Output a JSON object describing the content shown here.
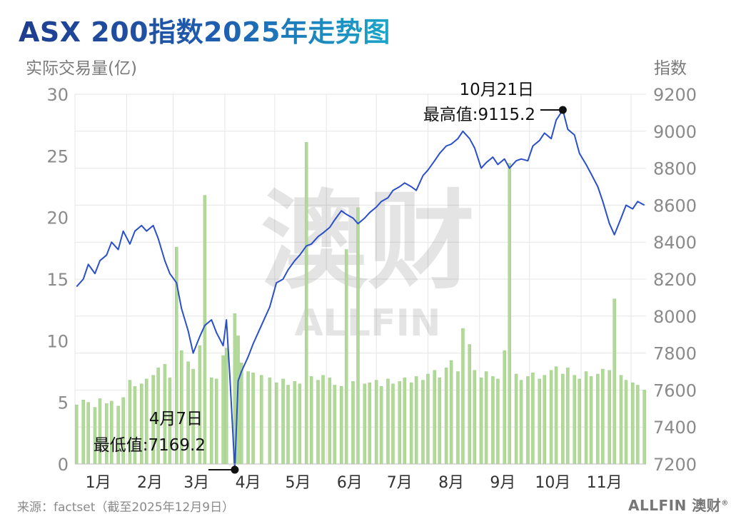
{
  "header": {
    "title": "ASX 200指数2025年走势图",
    "left_axis_title": "实际交易量(亿)",
    "right_axis_title": "指数"
  },
  "footer": {
    "source": "来源：factset（截至2025年12月9日）",
    "brand": "ALLFIN 澳财",
    "brand_mark": "®"
  },
  "watermark": {
    "cn": "澳财",
    "en": "ALLFIN"
  },
  "colors": {
    "line": "#2a4fc8",
    "bar": "#b3d99a",
    "bar_stroke": "#9ccc80",
    "grid": "#e6e6e6",
    "title_start": "#1f3d8f",
    "title_end": "#1aa6c9"
  },
  "chart_data": {
    "type": "line+bar",
    "title": "ASX 200指数2025年走势图",
    "ylabel_left": "实际交易量(亿)",
    "ylabel_right": "指数",
    "ylim_left": [
      0,
      30
    ],
    "ylim_right": [
      7200,
      9200
    ],
    "yticks_left": [
      "0",
      "5",
      "10",
      "15",
      "20",
      "25",
      "30"
    ],
    "yticks_right": [
      "7200",
      "7400",
      "7600",
      "7800",
      "8000",
      "8200",
      "8400",
      "8600",
      "8800",
      "9000",
      "9200"
    ],
    "months": [
      "1月",
      "2月",
      "3月",
      "4月",
      "5月",
      "6月",
      "7月",
      "8月",
      "9月",
      "10月",
      "11月"
    ],
    "grid": true,
    "series": [
      {
        "type": "line",
        "axis": "right",
        "points": [
          [
            "2025-01-02",
            8160
          ],
          [
            "2025-01-06",
            8200
          ],
          [
            "2025-01-09",
            8280
          ],
          [
            "2025-01-13",
            8230
          ],
          [
            "2025-01-16",
            8300
          ],
          [
            "2025-01-20",
            8330
          ],
          [
            "2025-01-23",
            8400
          ],
          [
            "2025-01-27",
            8360
          ],
          [
            "2025-01-30",
            8460
          ],
          [
            "2025-02-03",
            8390
          ],
          [
            "2025-02-06",
            8460
          ],
          [
            "2025-02-10",
            8490
          ],
          [
            "2025-02-13",
            8460
          ],
          [
            "2025-02-17",
            8490
          ],
          [
            "2025-02-20",
            8420
          ],
          [
            "2025-02-24",
            8300
          ],
          [
            "2025-02-27",
            8230
          ],
          [
            "2025-03-03",
            8180
          ],
          [
            "2025-03-06",
            8040
          ],
          [
            "2025-03-10",
            7920
          ],
          [
            "2025-03-13",
            7800
          ],
          [
            "2025-03-17",
            7890
          ],
          [
            "2025-03-20",
            7950
          ],
          [
            "2025-03-24",
            7980
          ],
          [
            "2025-03-27",
            7910
          ],
          [
            "2025-03-31",
            7840
          ],
          [
            "2025-04-02",
            7980
          ],
          [
            "2025-04-04",
            7680
          ],
          [
            "2025-04-07",
            7169.2
          ],
          [
            "2025-04-09",
            7650
          ],
          [
            "2025-04-11",
            7700
          ],
          [
            "2025-04-15",
            7780
          ],
          [
            "2025-04-18",
            7850
          ],
          [
            "2025-04-23",
            7950
          ],
          [
            "2025-04-28",
            8050
          ],
          [
            "2025-05-02",
            8180
          ],
          [
            "2025-05-06",
            8200
          ],
          [
            "2025-05-09",
            8250
          ],
          [
            "2025-05-13",
            8300
          ],
          [
            "2025-05-16",
            8330
          ],
          [
            "2025-05-20",
            8380
          ],
          [
            "2025-05-23",
            8390
          ],
          [
            "2025-05-27",
            8430
          ],
          [
            "2025-05-30",
            8450
          ],
          [
            "2025-06-03",
            8480
          ],
          [
            "2025-06-06",
            8520
          ],
          [
            "2025-06-10",
            8570
          ],
          [
            "2025-06-13",
            8550
          ],
          [
            "2025-06-17",
            8530
          ],
          [
            "2025-06-20",
            8500
          ],
          [
            "2025-06-24",
            8530
          ],
          [
            "2025-06-27",
            8560
          ],
          [
            "2025-07-01",
            8590
          ],
          [
            "2025-07-04",
            8620
          ],
          [
            "2025-07-08",
            8640
          ],
          [
            "2025-07-11",
            8680
          ],
          [
            "2025-07-15",
            8700
          ],
          [
            "2025-07-18",
            8720
          ],
          [
            "2025-07-22",
            8700
          ],
          [
            "2025-07-25",
            8680
          ],
          [
            "2025-07-29",
            8760
          ],
          [
            "2025-08-01",
            8790
          ],
          [
            "2025-08-05",
            8840
          ],
          [
            "2025-08-08",
            8880
          ],
          [
            "2025-08-12",
            8920
          ],
          [
            "2025-08-15",
            8930
          ],
          [
            "2025-08-19",
            8960
          ],
          [
            "2025-08-22",
            9000
          ],
          [
            "2025-08-26",
            8960
          ],
          [
            "2025-08-29",
            8910
          ],
          [
            "2025-09-02",
            8800
          ],
          [
            "2025-09-05",
            8830
          ],
          [
            "2025-09-09",
            8860
          ],
          [
            "2025-09-12",
            8820
          ],
          [
            "2025-09-16",
            8850
          ],
          [
            "2025-09-19",
            8800
          ],
          [
            "2025-09-23",
            8840
          ],
          [
            "2025-09-26",
            8850
          ],
          [
            "2025-09-30",
            8840
          ],
          [
            "2025-10-03",
            8920
          ],
          [
            "2025-10-07",
            8950
          ],
          [
            "2025-10-10",
            8990
          ],
          [
            "2025-10-14",
            8960
          ],
          [
            "2025-10-17",
            9060
          ],
          [
            "2025-10-21",
            9115.2
          ],
          [
            "2025-10-24",
            9010
          ],
          [
            "2025-10-28",
            8980
          ],
          [
            "2025-10-31",
            8880
          ],
          [
            "2025-11-04",
            8820
          ],
          [
            "2025-11-07",
            8770
          ],
          [
            "2025-11-11",
            8700
          ],
          [
            "2025-11-14",
            8620
          ],
          [
            "2025-11-18",
            8500
          ],
          [
            "2025-11-21",
            8440
          ],
          [
            "2025-11-25",
            8530
          ],
          [
            "2025-11-28",
            8600
          ],
          [
            "2025-12-02",
            8580
          ],
          [
            "2025-12-05",
            8620
          ],
          [
            "2025-12-09",
            8600
          ]
        ]
      },
      {
        "type": "bar",
        "axis": "left",
        "points": [
          [
            "2025-01-02",
            4.8
          ],
          [
            "2025-01-06",
            5.2
          ],
          [
            "2025-01-09",
            5.0
          ],
          [
            "2025-01-13",
            4.6
          ],
          [
            "2025-01-16",
            5.3
          ],
          [
            "2025-01-20",
            4.9
          ],
          [
            "2025-01-23",
            5.1
          ],
          [
            "2025-01-27",
            4.7
          ],
          [
            "2025-01-30",
            5.4
          ],
          [
            "2025-02-03",
            6.8
          ],
          [
            "2025-02-06",
            6.3
          ],
          [
            "2025-02-10",
            6.5
          ],
          [
            "2025-02-13",
            6.9
          ],
          [
            "2025-02-17",
            7.2
          ],
          [
            "2025-02-20",
            7.8
          ],
          [
            "2025-02-24",
            8.1
          ],
          [
            "2025-02-27",
            7.0
          ],
          [
            "2025-03-03",
            17.6
          ],
          [
            "2025-03-06",
            9.2
          ],
          [
            "2025-03-10",
            8.3
          ],
          [
            "2025-03-13",
            7.7
          ],
          [
            "2025-03-17",
            9.6
          ],
          [
            "2025-03-20",
            21.8
          ],
          [
            "2025-03-24",
            7.0
          ],
          [
            "2025-03-27",
            6.9
          ],
          [
            "2025-03-31",
            8.8
          ],
          [
            "2025-04-02",
            9.4
          ],
          [
            "2025-04-07",
            12.2
          ],
          [
            "2025-04-09",
            10.4
          ],
          [
            "2025-04-11",
            8.2
          ],
          [
            "2025-04-15",
            7.5
          ],
          [
            "2025-04-18",
            7.4
          ],
          [
            "2025-04-23",
            7.2
          ],
          [
            "2025-04-28",
            7.0
          ],
          [
            "2025-05-02",
            6.6
          ],
          [
            "2025-05-06",
            6.9
          ],
          [
            "2025-05-09",
            6.4
          ],
          [
            "2025-05-13",
            6.7
          ],
          [
            "2025-05-16",
            6.5
          ],
          [
            "2025-05-20",
            26.1
          ],
          [
            "2025-05-23",
            7.1
          ],
          [
            "2025-05-27",
            6.8
          ],
          [
            "2025-05-30",
            7.2
          ],
          [
            "2025-06-03",
            7.0
          ],
          [
            "2025-06-06",
            6.4
          ],
          [
            "2025-06-10",
            6.3
          ],
          [
            "2025-06-13",
            17.4
          ],
          [
            "2025-06-17",
            6.7
          ],
          [
            "2025-06-20",
            20.8
          ],
          [
            "2025-06-24",
            6.5
          ],
          [
            "2025-06-27",
            6.6
          ],
          [
            "2025-07-01",
            6.8
          ],
          [
            "2025-07-04",
            6.3
          ],
          [
            "2025-07-08",
            6.9
          ],
          [
            "2025-07-11",
            6.5
          ],
          [
            "2025-07-15",
            6.7
          ],
          [
            "2025-07-18",
            7.0
          ],
          [
            "2025-07-22",
            6.6
          ],
          [
            "2025-07-25",
            7.1
          ],
          [
            "2025-07-29",
            6.8
          ],
          [
            "2025-08-01",
            7.3
          ],
          [
            "2025-08-05",
            7.6
          ],
          [
            "2025-08-08",
            7.0
          ],
          [
            "2025-08-12",
            7.8
          ],
          [
            "2025-08-15",
            8.4
          ],
          [
            "2025-08-19",
            7.5
          ],
          [
            "2025-08-22",
            11.0
          ],
          [
            "2025-08-26",
            9.7
          ],
          [
            "2025-08-29",
            7.6
          ],
          [
            "2025-09-02",
            7.0
          ],
          [
            "2025-09-05",
            7.5
          ],
          [
            "2025-09-09",
            7.1
          ],
          [
            "2025-09-12",
            6.9
          ],
          [
            "2025-09-16",
            9.2
          ],
          [
            "2025-09-19",
            24.4
          ],
          [
            "2025-09-23",
            7.3
          ],
          [
            "2025-09-26",
            6.8
          ],
          [
            "2025-09-30",
            7.1
          ],
          [
            "2025-10-03",
            7.4
          ],
          [
            "2025-10-07",
            6.9
          ],
          [
            "2025-10-10",
            7.2
          ],
          [
            "2025-10-14",
            7.6
          ],
          [
            "2025-10-17",
            7.9
          ],
          [
            "2025-10-21",
            7.3
          ],
          [
            "2025-10-24",
            7.8
          ],
          [
            "2025-10-28",
            7.2
          ],
          [
            "2025-10-31",
            6.9
          ],
          [
            "2025-11-04",
            7.5
          ],
          [
            "2025-11-07",
            7.1
          ],
          [
            "2025-11-11",
            7.3
          ],
          [
            "2025-11-14",
            7.7
          ],
          [
            "2025-11-18",
            7.6
          ],
          [
            "2025-11-21",
            13.4
          ],
          [
            "2025-11-25",
            7.2
          ],
          [
            "2025-11-28",
            6.8
          ],
          [
            "2025-12-02",
            6.6
          ],
          [
            "2025-12-05",
            6.4
          ],
          [
            "2025-12-09",
            6.0
          ]
        ]
      }
    ],
    "annotations": [
      {
        "id": "high",
        "date": "2025-10-21",
        "value": 9115.2,
        "date_label": "10月21日",
        "label": "最高值:9115.2"
      },
      {
        "id": "low",
        "date": "2025-04-07",
        "value": 7169.2,
        "date_label": "4月7日",
        "label": "最低值:7169.2"
      }
    ]
  }
}
